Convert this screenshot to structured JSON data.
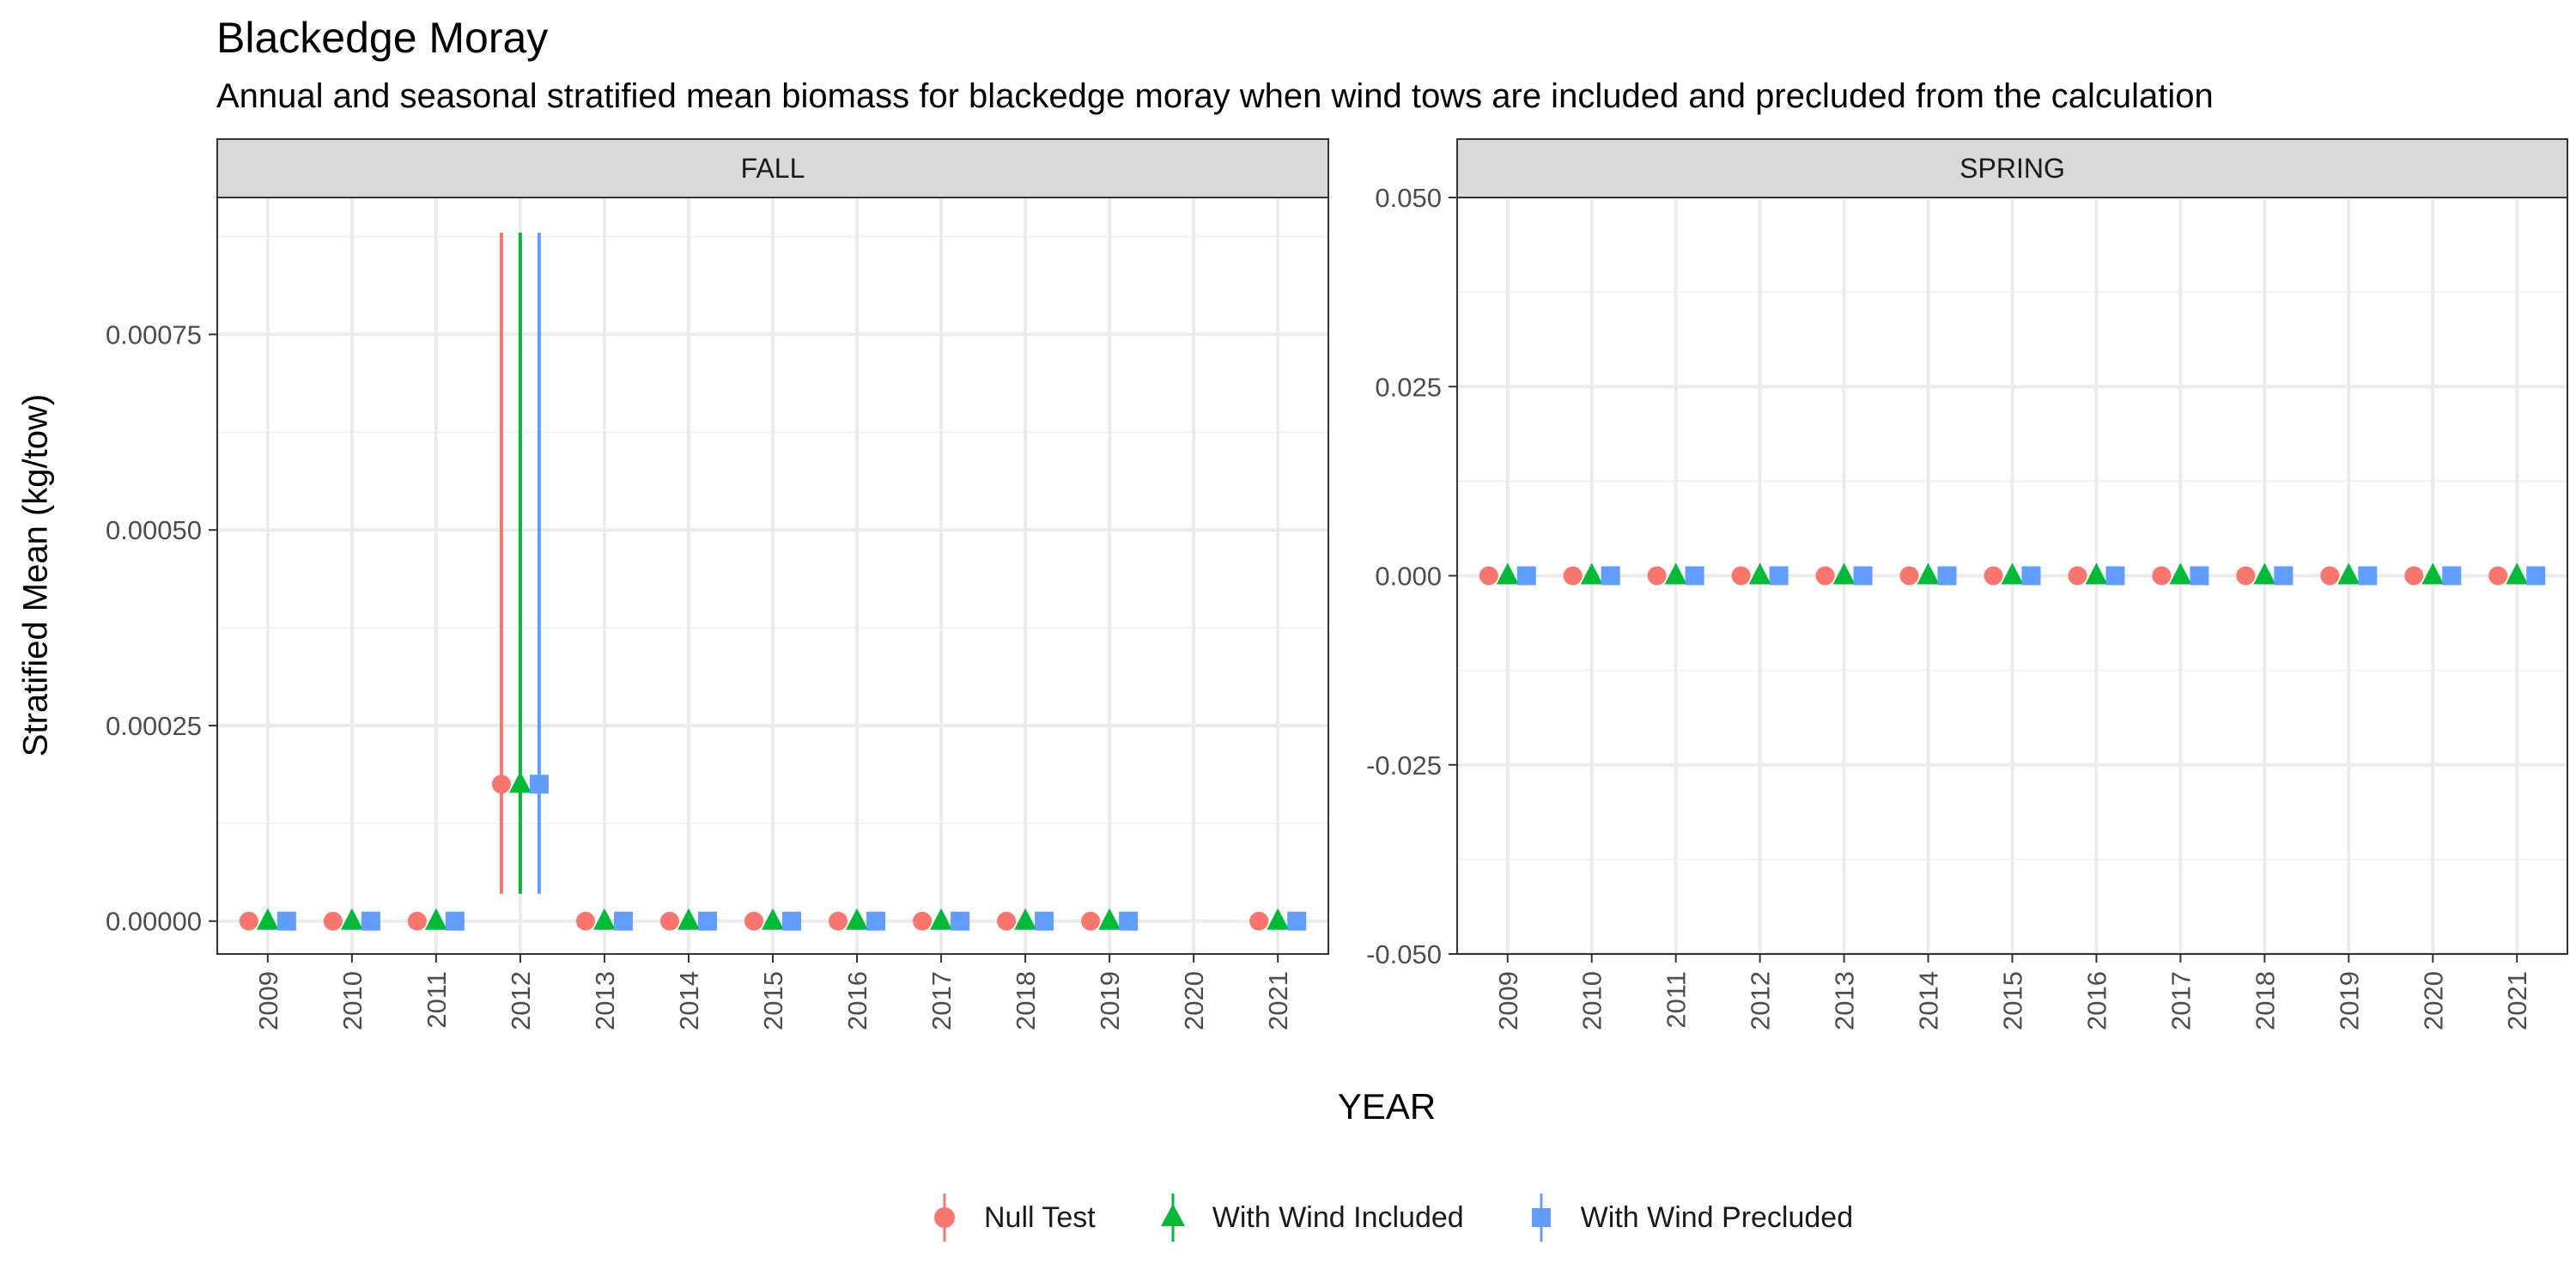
{
  "chart_data": {
    "type": "scatter",
    "title": "Blackedge Moray",
    "subtitle": "Annual and seasonal stratified mean biomass for blackedge moray when wind tows are included and precluded from the calculation",
    "xlabel": "YEAR",
    "ylabel": "Stratified Mean (kg/tow)",
    "categories": [
      "2009",
      "2010",
      "2011",
      "2012",
      "2013",
      "2014",
      "2015",
      "2016",
      "2017",
      "2018",
      "2019",
      "2020",
      "2021"
    ],
    "series_styles": [
      {
        "name": "Null Test",
        "color": "#F8766D",
        "shape": "circle"
      },
      {
        "name": "With Wind Included",
        "color": "#00BA38",
        "shape": "triangle"
      },
      {
        "name": "With Wind Precluded",
        "color": "#619CFF",
        "shape": "square"
      }
    ],
    "legend_position": "bottom",
    "grid": true,
    "panels": [
      {
        "name": "FALL",
        "ylim": [
          -4.2e-05,
          0.000925
        ],
        "ticks": [
          0.0,
          0.00025,
          0.0005,
          0.00075
        ],
        "tick_labels": [
          "0.00000",
          "0.00025",
          "0.00050",
          "0.00075"
        ],
        "minor_ticks": [
          0.000125,
          0.000375,
          0.000625,
          0.000875
        ],
        "series": [
          {
            "name": "Null Test",
            "points": [
              {
                "x": "2009",
                "y": 0
              },
              {
                "x": "2010",
                "y": 0
              },
              {
                "x": "2011",
                "y": 0
              },
              {
                "x": "2012",
                "y": 0.000175,
                "ymin": 3.5e-05,
                "ymax": 0.00088
              },
              {
                "x": "2013",
                "y": 0
              },
              {
                "x": "2014",
                "y": 0
              },
              {
                "x": "2015",
                "y": 0
              },
              {
                "x": "2016",
                "y": 0
              },
              {
                "x": "2017",
                "y": 0
              },
              {
                "x": "2018",
                "y": 0
              },
              {
                "x": "2019",
                "y": 0
              },
              {
                "x": "2021",
                "y": 0
              }
            ]
          },
          {
            "name": "With Wind Included",
            "points": [
              {
                "x": "2009",
                "y": 0
              },
              {
                "x": "2010",
                "y": 0
              },
              {
                "x": "2011",
                "y": 0
              },
              {
                "x": "2012",
                "y": 0.000175,
                "ymin": 3.5e-05,
                "ymax": 0.00088
              },
              {
                "x": "2013",
                "y": 0
              },
              {
                "x": "2014",
                "y": 0
              },
              {
                "x": "2015",
                "y": 0
              },
              {
                "x": "2016",
                "y": 0
              },
              {
                "x": "2017",
                "y": 0
              },
              {
                "x": "2018",
                "y": 0
              },
              {
                "x": "2019",
                "y": 0
              },
              {
                "x": "2021",
                "y": 0
              }
            ]
          },
          {
            "name": "With Wind Precluded",
            "points": [
              {
                "x": "2009",
                "y": 0
              },
              {
                "x": "2010",
                "y": 0
              },
              {
                "x": "2011",
                "y": 0
              },
              {
                "x": "2012",
                "y": 0.000175,
                "ymin": 3.5e-05,
                "ymax": 0.00088
              },
              {
                "x": "2013",
                "y": 0
              },
              {
                "x": "2014",
                "y": 0
              },
              {
                "x": "2015",
                "y": 0
              },
              {
                "x": "2016",
                "y": 0
              },
              {
                "x": "2017",
                "y": 0
              },
              {
                "x": "2018",
                "y": 0
              },
              {
                "x": "2019",
                "y": 0
              },
              {
                "x": "2021",
                "y": 0
              }
            ]
          }
        ]
      },
      {
        "name": "SPRING",
        "ylim": [
          -0.05,
          0.05
        ],
        "ticks": [
          -0.05,
          -0.025,
          0.0,
          0.025,
          0.05
        ],
        "tick_labels": [
          "-0.050",
          "-0.025",
          "0.000",
          "0.025",
          "0.050"
        ],
        "minor_ticks": [
          -0.0375,
          -0.0125,
          0.0125,
          0.0375
        ],
        "series": [
          {
            "name": "Null Test",
            "points": [
              {
                "x": "2009",
                "y": 0
              },
              {
                "x": "2010",
                "y": 0
              },
              {
                "x": "2011",
                "y": 0
              },
              {
                "x": "2012",
                "y": 0
              },
              {
                "x": "2013",
                "y": 0
              },
              {
                "x": "2014",
                "y": 0
              },
              {
                "x": "2015",
                "y": 0
              },
              {
                "x": "2016",
                "y": 0
              },
              {
                "x": "2017",
                "y": 0
              },
              {
                "x": "2018",
                "y": 0
              },
              {
                "x": "2019",
                "y": 0
              },
              {
                "x": "2020",
                "y": 0
              },
              {
                "x": "2021",
                "y": 0
              }
            ]
          },
          {
            "name": "With Wind Included",
            "points": [
              {
                "x": "2009",
                "y": 0
              },
              {
                "x": "2010",
                "y": 0
              },
              {
                "x": "2011",
                "y": 0
              },
              {
                "x": "2012",
                "y": 0
              },
              {
                "x": "2013",
                "y": 0
              },
              {
                "x": "2014",
                "y": 0
              },
              {
                "x": "2015",
                "y": 0
              },
              {
                "x": "2016",
                "y": 0
              },
              {
                "x": "2017",
                "y": 0
              },
              {
                "x": "2018",
                "y": 0
              },
              {
                "x": "2019",
                "y": 0
              },
              {
                "x": "2020",
                "y": 0
              },
              {
                "x": "2021",
                "y": 0
              }
            ]
          },
          {
            "name": "With Wind Precluded",
            "points": [
              {
                "x": "2009",
                "y": 0
              },
              {
                "x": "2010",
                "y": 0
              },
              {
                "x": "2011",
                "y": 0
              },
              {
                "x": "2012",
                "y": 0
              },
              {
                "x": "2013",
                "y": 0
              },
              {
                "x": "2014",
                "y": 0
              },
              {
                "x": "2015",
                "y": 0
              },
              {
                "x": "2016",
                "y": 0
              },
              {
                "x": "2017",
                "y": 0
              },
              {
                "x": "2018",
                "y": 0
              },
              {
                "x": "2019",
                "y": 0
              },
              {
                "x": "2020",
                "y": 0
              },
              {
                "x": "2021",
                "y": 0
              }
            ]
          }
        ]
      }
    ]
  }
}
